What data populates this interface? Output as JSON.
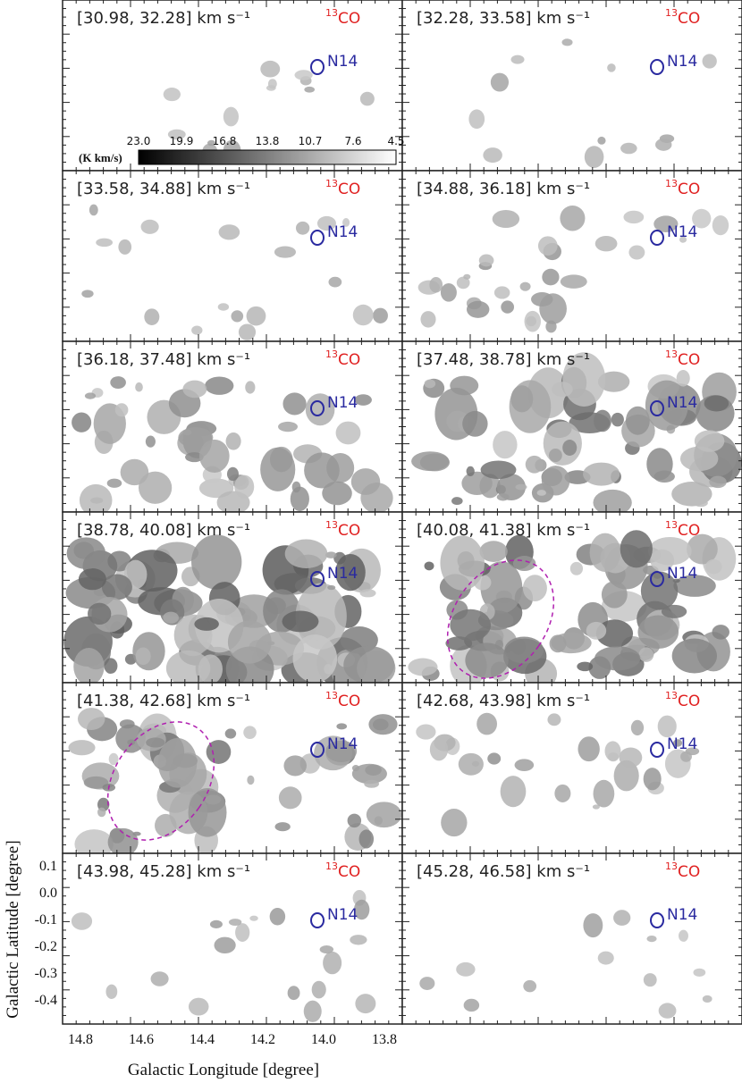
{
  "panels": [
    {
      "range": "[30.98, 32.28]",
      "level": 0.05,
      "ring": false
    },
    {
      "range": "[32.28, 33.58]",
      "level": 0.04,
      "ring": false
    },
    {
      "range": "[33.58, 34.88]",
      "level": 0.12,
      "ring": false
    },
    {
      "range": "[34.88, 36.18]",
      "level": 0.25,
      "ring": false
    },
    {
      "range": "[36.18, 37.48]",
      "level": 0.45,
      "ring": false
    },
    {
      "range": "[37.48, 38.78]",
      "level": 0.65,
      "ring": false
    },
    {
      "range": "[38.78, 40.08]",
      "level": 0.85,
      "ring": false
    },
    {
      "range": "[40.08, 41.38]",
      "level": 0.75,
      "ring": true
    },
    {
      "range": "[41.38, 42.68]",
      "level": 0.55,
      "ring": true
    },
    {
      "range": "[42.68, 43.98]",
      "level": 0.22,
      "ring": false
    },
    {
      "range": "[43.98, 45.28]",
      "level": 0.12,
      "ring": false
    },
    {
      "range": "[45.28, 46.58]",
      "level": 0.05,
      "ring": false
    }
  ],
  "velocity_unit": "km s⁻¹",
  "tracer": {
    "superscript": "13",
    "name": "CO"
  },
  "source_label": "N14",
  "colorbar": {
    "unit": "(K km/s)",
    "ticks": [
      "23.0",
      "19.9",
      "16.8",
      "13.8",
      "10.7",
      "7.6",
      "4.5"
    ]
  },
  "axes": {
    "xlabel": "Galactic Longitude [degree]",
    "ylabel": "Galactic Latitude [degree]",
    "xticks": [
      "14.8",
      "14.6",
      "14.4",
      "14.2",
      "14.0",
      "13.8"
    ],
    "yticks": [
      "0.1",
      "0.0",
      "-0.1",
      "-0.2",
      "-0.3",
      "-0.4"
    ]
  },
  "colors": {
    "tracer": "#e02020",
    "source": "#2a2aa0",
    "ring": "#b020b0",
    "emission": "#7a7a7a"
  }
}
